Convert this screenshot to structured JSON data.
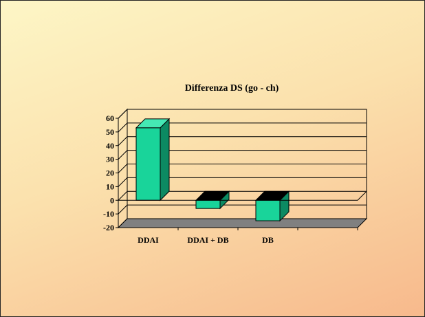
{
  "chart_data": {
    "type": "bar",
    "title": "Differenza DS (go - ch)",
    "categories": [
      "DDAI",
      "DDAI + DB",
      "DB",
      ""
    ],
    "values": [
      53,
      -6,
      -15,
      0
    ],
    "ylim": [
      -20,
      60
    ],
    "yticks": [
      60,
      50,
      40,
      30,
      20,
      10,
      0,
      -10,
      -20
    ],
    "xlabel": "",
    "ylabel": "",
    "grid": true,
    "legend": "none",
    "style": "3d",
    "colors": {
      "bar_front": "#19d49a",
      "bar_side": "#0c8a62",
      "bar_top": "#45e8b4",
      "floor": "#808080"
    }
  }
}
